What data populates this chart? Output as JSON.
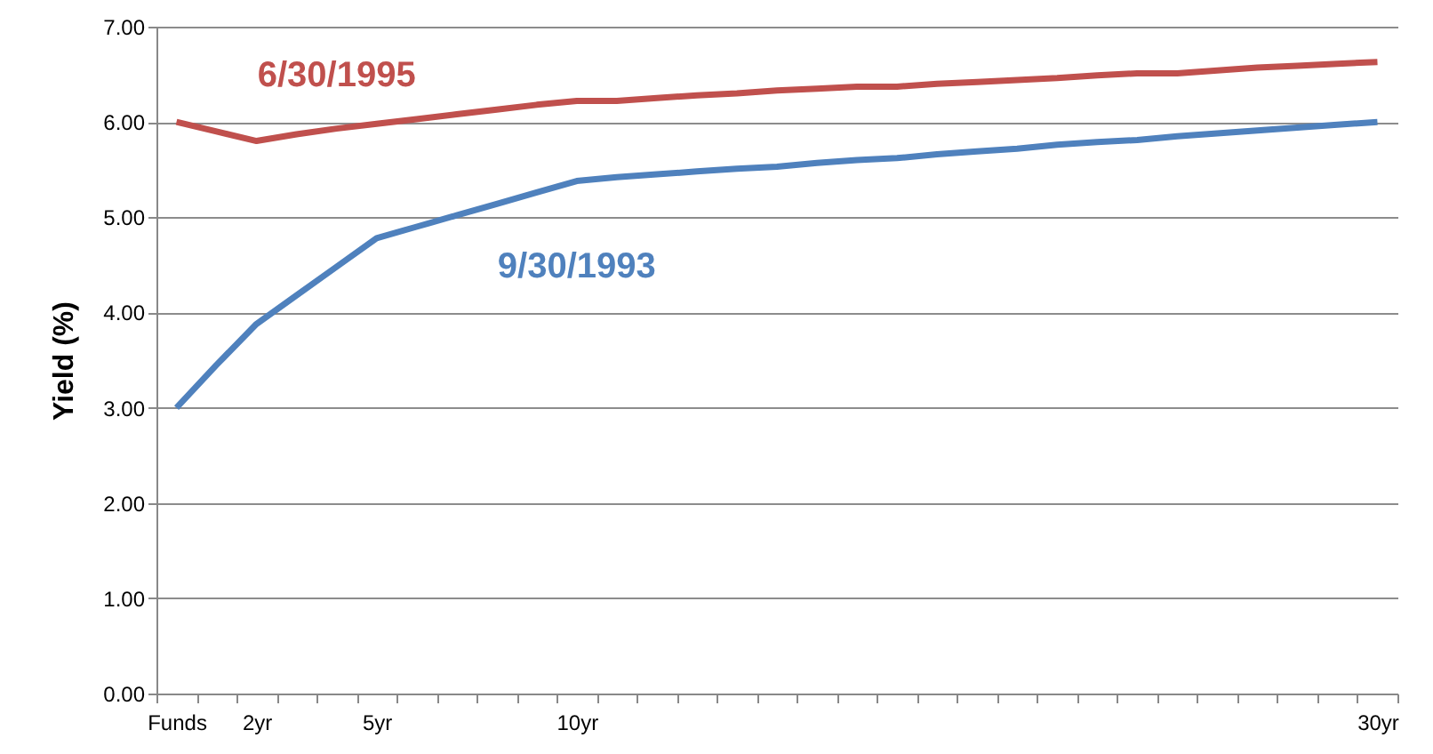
{
  "chart_data": {
    "type": "line",
    "ylabel": "Yield (%)",
    "categories": [
      "Funds",
      null,
      "2yr",
      null,
      null,
      "5yr",
      null,
      null,
      null,
      null,
      "10yr",
      null,
      null,
      null,
      null,
      null,
      null,
      null,
      null,
      null,
      null,
      null,
      null,
      null,
      null,
      null,
      null,
      null,
      null,
      null,
      "30yr"
    ],
    "series": [
      {
        "name": "6/30/1995",
        "color": "#c0504d",
        "values": [
          6.0,
          5.9,
          5.8,
          5.87,
          5.93,
          5.98,
          6.03,
          6.08,
          6.13,
          6.18,
          6.22,
          6.22,
          6.25,
          6.28,
          6.3,
          6.33,
          6.35,
          6.37,
          6.37,
          6.4,
          6.42,
          6.44,
          6.46,
          6.49,
          6.51,
          6.51,
          6.54,
          6.57,
          6.59,
          6.61,
          6.63
        ]
      },
      {
        "name": "9/30/1993",
        "color": "#4f81bd",
        "values": [
          3.0,
          3.45,
          3.88,
          4.18,
          4.48,
          4.78,
          4.9,
          5.02,
          5.14,
          5.26,
          5.38,
          5.42,
          5.45,
          5.48,
          5.51,
          5.53,
          5.57,
          5.6,
          5.62,
          5.66,
          5.69,
          5.72,
          5.76,
          5.79,
          5.81,
          5.85,
          5.88,
          5.91,
          5.94,
          5.97,
          6.0
        ]
      }
    ],
    "ylim": [
      0,
      7
    ],
    "yticks": [
      {
        "value": 0,
        "label": "0.00"
      },
      {
        "value": 1,
        "label": "1.00"
      },
      {
        "value": 2,
        "label": "2.00"
      },
      {
        "value": 3,
        "label": "3.00"
      },
      {
        "value": 4,
        "label": "4.00"
      },
      {
        "value": 5,
        "label": "5.00"
      },
      {
        "value": 6,
        "label": "6.00"
      },
      {
        "value": 7,
        "label": "7.00"
      }
    ],
    "grid": "y",
    "legend": false
  }
}
